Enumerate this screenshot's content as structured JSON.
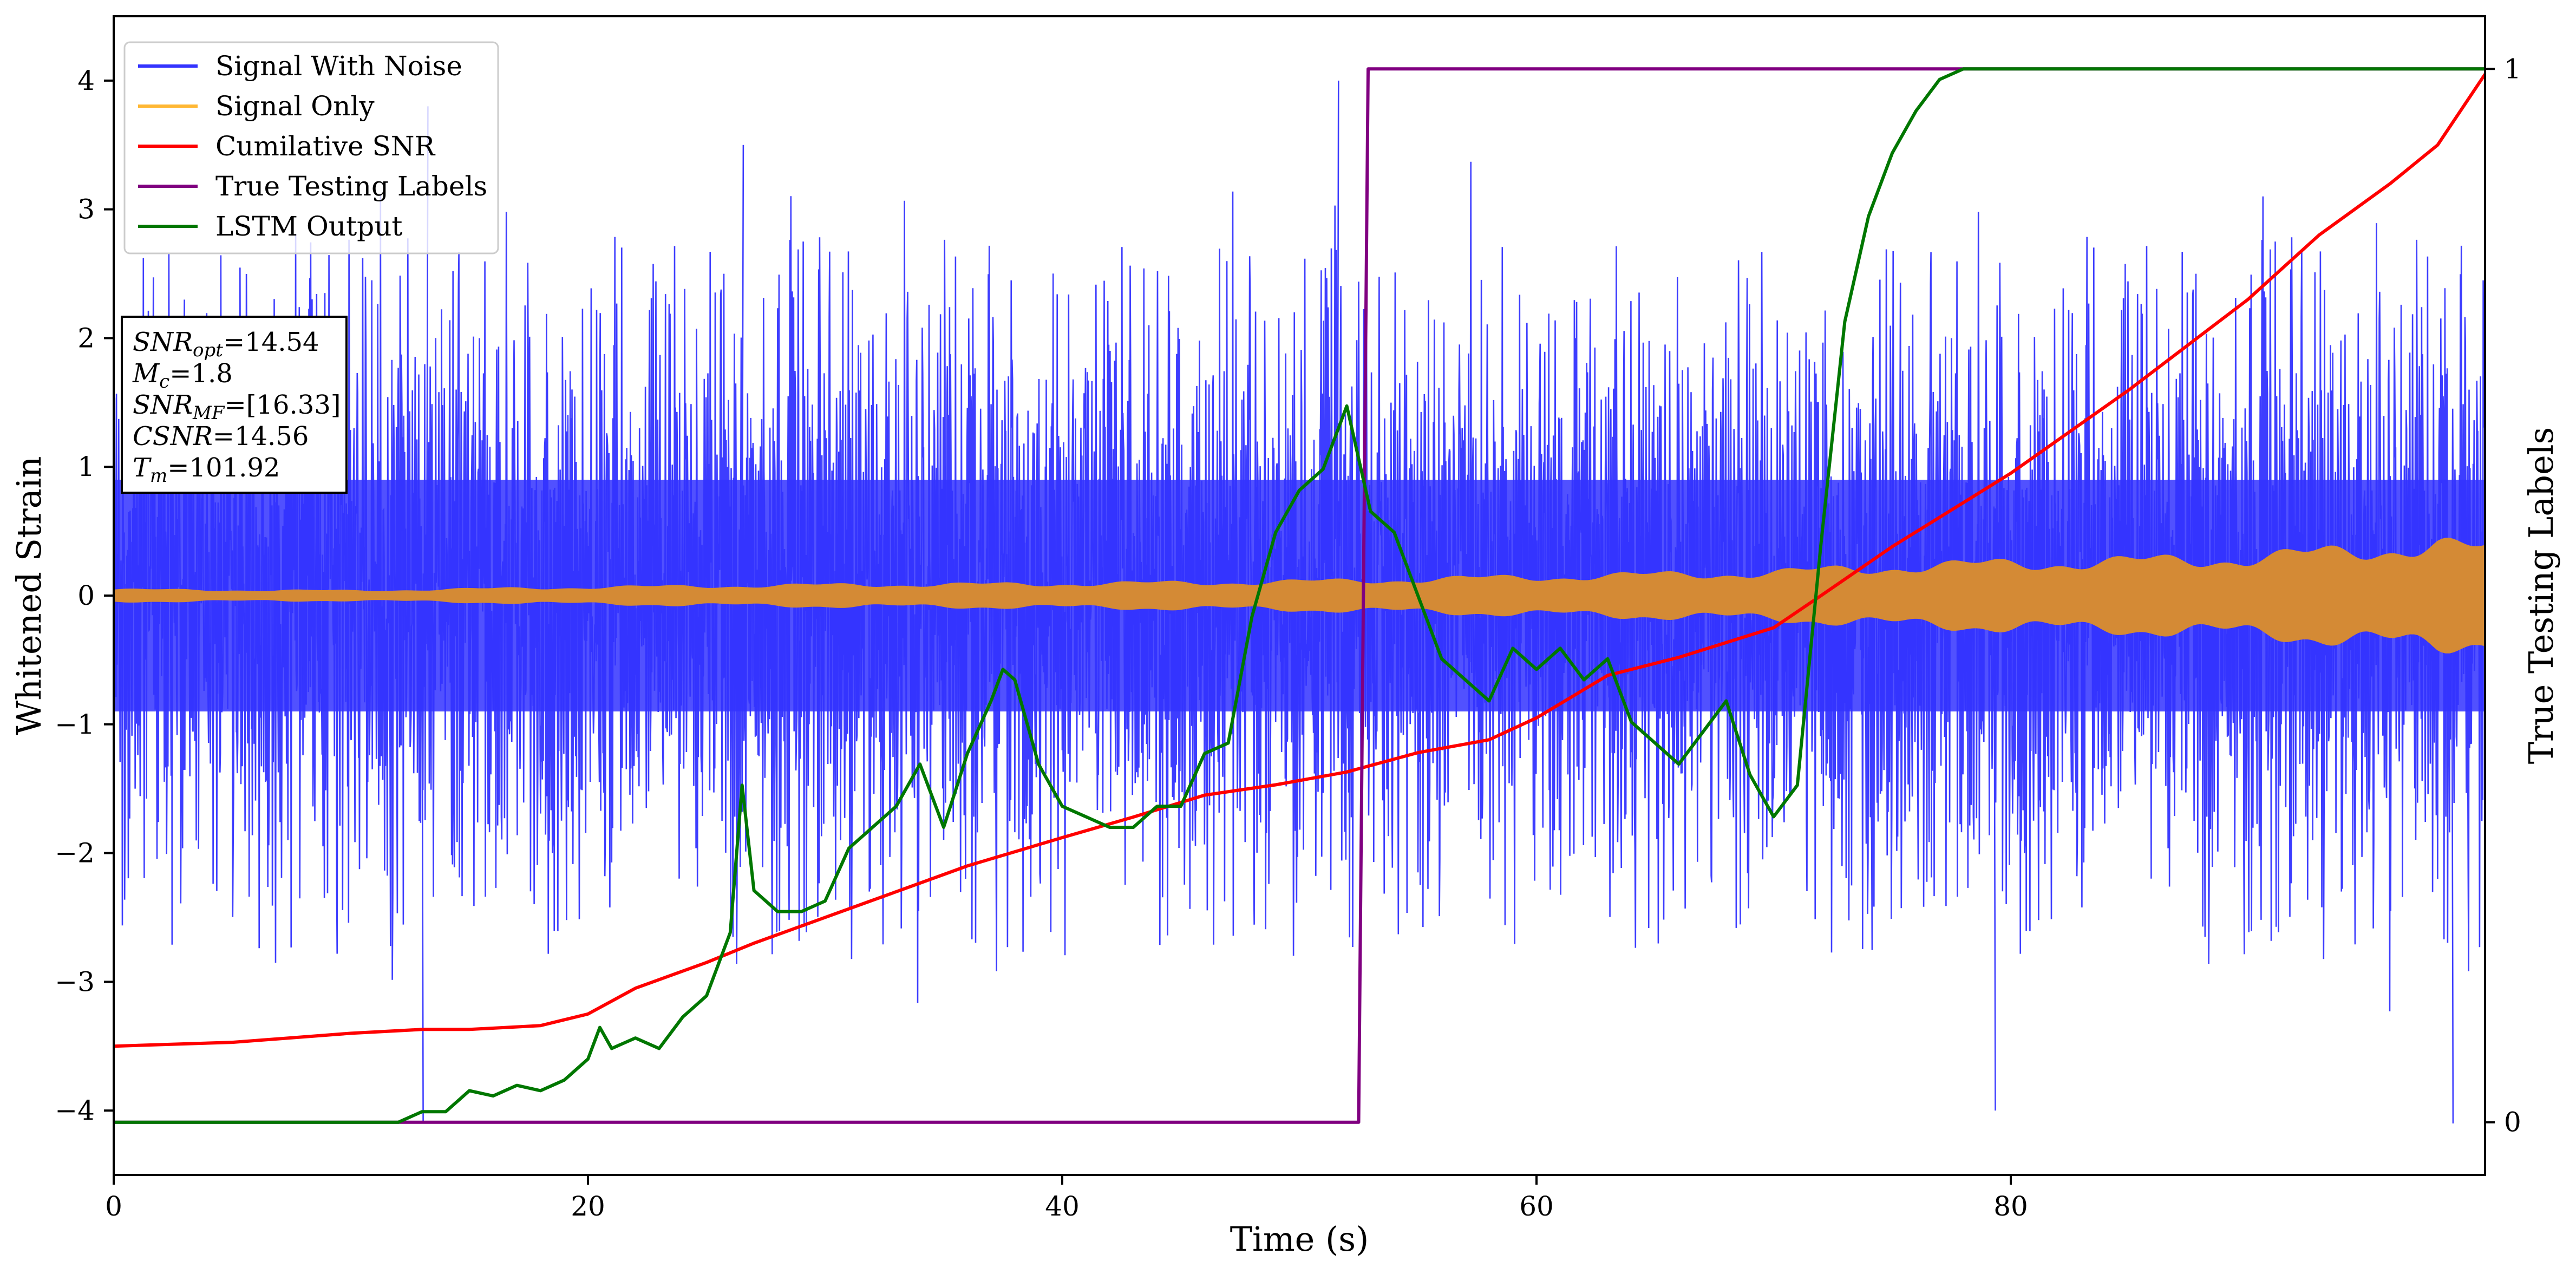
{
  "chart_data": {
    "type": "line",
    "xlabel": "Time (s)",
    "ylabel_left": "Whitened Strain",
    "ylabel_right": "True Testing Labels",
    "xlim": [
      0,
      100
    ],
    "ylim_left": [
      -4.5,
      4.5
    ],
    "ylim_right": [
      -0.05,
      1.05
    ],
    "x_ticks": [
      0,
      20,
      40,
      60,
      80
    ],
    "x_tick_labels": [
      "0",
      "20",
      "40",
      "60",
      "80"
    ],
    "y_left_ticks": [
      -4,
      -3,
      -2,
      -1,
      0,
      1,
      2,
      3,
      4
    ],
    "y_left_tick_labels": [
      "−4",
      "−3",
      "−2",
      "−1",
      "0",
      "1",
      "2",
      "3",
      "4"
    ],
    "y_right_ticks": [
      0,
      1
    ],
    "y_right_tick_labels": [
      "0",
      "1"
    ],
    "grid": false,
    "legend_position": "top-left",
    "legend": [
      {
        "label": "Signal With Noise",
        "color": "#3333ff"
      },
      {
        "label": "Signal Only",
        "color": "#ffb733"
      },
      {
        "label": "Cumilative SNR",
        "color": "#ff0000"
      },
      {
        "label": "True Testing Labels",
        "color": "#800080"
      },
      {
        "label": "LSTM Output",
        "color": "#007700"
      }
    ],
    "annotation": [
      {
        "base": "SNR",
        "sub": "opt",
        "value": "=14.54"
      },
      {
        "base": "M",
        "sub": "c",
        "value": "=1.8"
      },
      {
        "base": "SNR",
        "sub": "MF",
        "value": "=[16.33]"
      },
      {
        "base": "CSNR",
        "sub": "",
        "value": "=14.56"
      },
      {
        "base": "T",
        "sub": "m",
        "value": "=101.92"
      }
    ],
    "series": [
      {
        "name": "Signal With Noise",
        "axis": "left",
        "color": "#3333ff",
        "envelope_x": [
          0,
          5,
          10,
          13,
          20,
          26,
          30,
          40,
          50,
          51.5,
          60,
          70,
          80,
          90,
          98.5,
          100
        ],
        "envelope_upper": [
          2.8,
          3.0,
          3.1,
          3.8,
          3.3,
          3.5,
          3.3,
          3.4,
          3.6,
          4.0,
          3.5,
          3.3,
          3.5,
          3.4,
          3.0,
          3.0
        ],
        "envelope_lower": [
          -2.8,
          -3.1,
          -3.1,
          -4.1,
          -3.4,
          -3.4,
          -3.4,
          -3.5,
          -3.4,
          -3.4,
          -3.6,
          -3.6,
          -4.0,
          -3.7,
          -4.1,
          -3.3
        ],
        "dense_band": [
          -0.9,
          0.9
        ]
      },
      {
        "name": "Signal Only",
        "axis": "left",
        "color": "#d48a35",
        "x": [
          0,
          10,
          20,
          30,
          40,
          50,
          55,
          60,
          65,
          70,
          75,
          80,
          85,
          90,
          95,
          98,
          100
        ],
        "amplitude": [
          0.05,
          0.04,
          0.07,
          0.09,
          0.1,
          0.12,
          0.14,
          0.16,
          0.18,
          0.2,
          0.25,
          0.28,
          0.3,
          0.33,
          0.4,
          0.45,
          0.4
        ]
      },
      {
        "name": "Cumilative SNR",
        "axis": "left",
        "color": "#ff0000",
        "x": [
          0,
          5,
          10,
          13,
          15,
          18,
          20,
          22,
          25,
          27,
          30,
          33,
          36,
          40,
          43,
          46,
          49,
          52,
          55,
          58,
          60,
          63,
          66,
          70,
          72,
          75,
          80,
          85,
          90,
          93,
          96,
          98,
          100
        ],
        "y": [
          -3.5,
          -3.47,
          -3.4,
          -3.37,
          -3.37,
          -3.34,
          -3.25,
          -3.05,
          -2.85,
          -2.7,
          -2.5,
          -2.3,
          -2.1,
          -1.88,
          -1.72,
          -1.55,
          -1.47,
          -1.37,
          -1.22,
          -1.12,
          -0.95,
          -0.62,
          -0.48,
          -0.25,
          0.0,
          0.38,
          0.95,
          1.6,
          2.3,
          2.8,
          3.2,
          3.5,
          4.05
        ]
      },
      {
        "name": "True Testing Labels",
        "axis": "right",
        "color": "#800080",
        "x": [
          0,
          52.5,
          52.9,
          100
        ],
        "y": [
          0,
          0,
          1,
          1
        ]
      },
      {
        "name": "LSTM Output",
        "axis": "right",
        "color": "#007700",
        "x": [
          0,
          12,
          13,
          14,
          15,
          16,
          17,
          18,
          19,
          20,
          20.5,
          21,
          22,
          23,
          24,
          25,
          26,
          26.5,
          27,
          28,
          29,
          30,
          31,
          32,
          33,
          34,
          35,
          36,
          37,
          37.5,
          38,
          39,
          40,
          41,
          42,
          43,
          44,
          45,
          46,
          47,
          48,
          49,
          50,
          51,
          52,
          53,
          54,
          55,
          56,
          57,
          58,
          59,
          60,
          61,
          62,
          63,
          64,
          65,
          66,
          67,
          68,
          69,
          70,
          71,
          72,
          73,
          74,
          75,
          76,
          77,
          78,
          80,
          100
        ],
        "y": [
          0,
          0,
          0.01,
          0.01,
          0.03,
          0.025,
          0.035,
          0.03,
          0.04,
          0.06,
          0.09,
          0.07,
          0.08,
          0.07,
          0.1,
          0.12,
          0.18,
          0.32,
          0.22,
          0.2,
          0.2,
          0.21,
          0.26,
          0.28,
          0.3,
          0.34,
          0.28,
          0.35,
          0.4,
          0.43,
          0.42,
          0.34,
          0.3,
          0.29,
          0.28,
          0.28,
          0.3,
          0.3,
          0.35,
          0.36,
          0.48,
          0.56,
          0.6,
          0.62,
          0.68,
          0.58,
          0.56,
          0.5,
          0.44,
          0.42,
          0.4,
          0.45,
          0.43,
          0.45,
          0.42,
          0.44,
          0.38,
          0.36,
          0.34,
          0.37,
          0.4,
          0.33,
          0.29,
          0.32,
          0.55,
          0.76,
          0.86,
          0.92,
          0.96,
          0.99,
          1.0,
          1.0,
          1.0
        ]
      }
    ]
  }
}
